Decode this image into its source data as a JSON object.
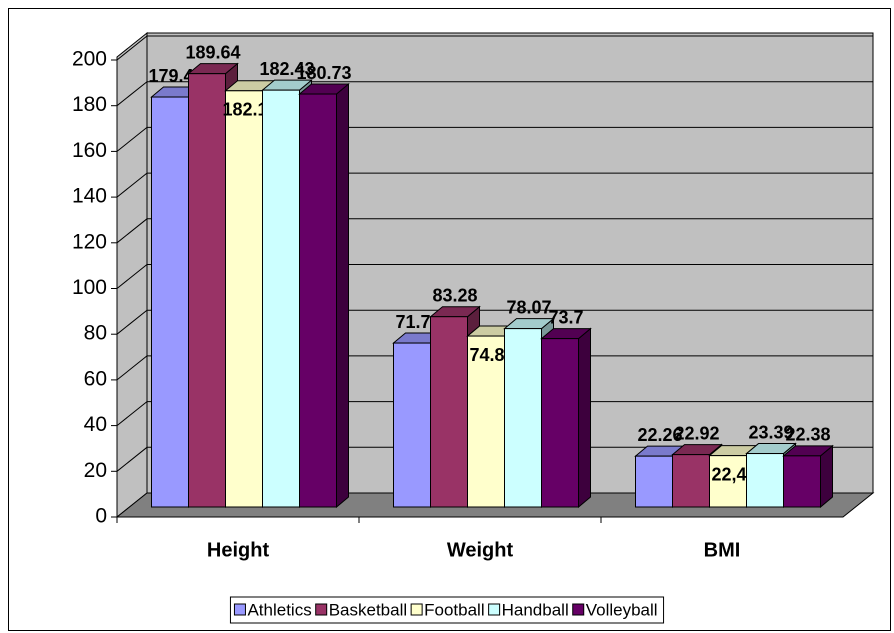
{
  "chart_data": {
    "type": "bar3d",
    "categories": [
      "Height",
      "Weight",
      "BMI"
    ],
    "series": [
      {
        "name": "Athletics",
        "color": "#9999ff",
        "values": [
          179.42,
          71.75,
          22.26
        ]
      },
      {
        "name": "Basketball",
        "color": "#993366",
        "values": [
          189.64,
          83.28,
          22.92
        ]
      },
      {
        "name": "Football",
        "color": "#ffffcc",
        "values": [
          182.15,
          74.81,
          22.48
        ],
        "value_labels": [
          "182.15",
          "74.81",
          "22,48"
        ]
      },
      {
        "name": "Handball",
        "color": "#ccffff",
        "values": [
          182.43,
          78.07,
          23.39
        ]
      },
      {
        "name": "Volleyball",
        "color": "#660066",
        "values": [
          180.73,
          73.7,
          22.38
        ]
      }
    ],
    "ylim": [
      0,
      200
    ],
    "yticks": [
      0,
      20,
      40,
      60,
      80,
      100,
      120,
      140,
      160,
      180,
      200
    ],
    "grid": true,
    "legend": "bottom"
  }
}
